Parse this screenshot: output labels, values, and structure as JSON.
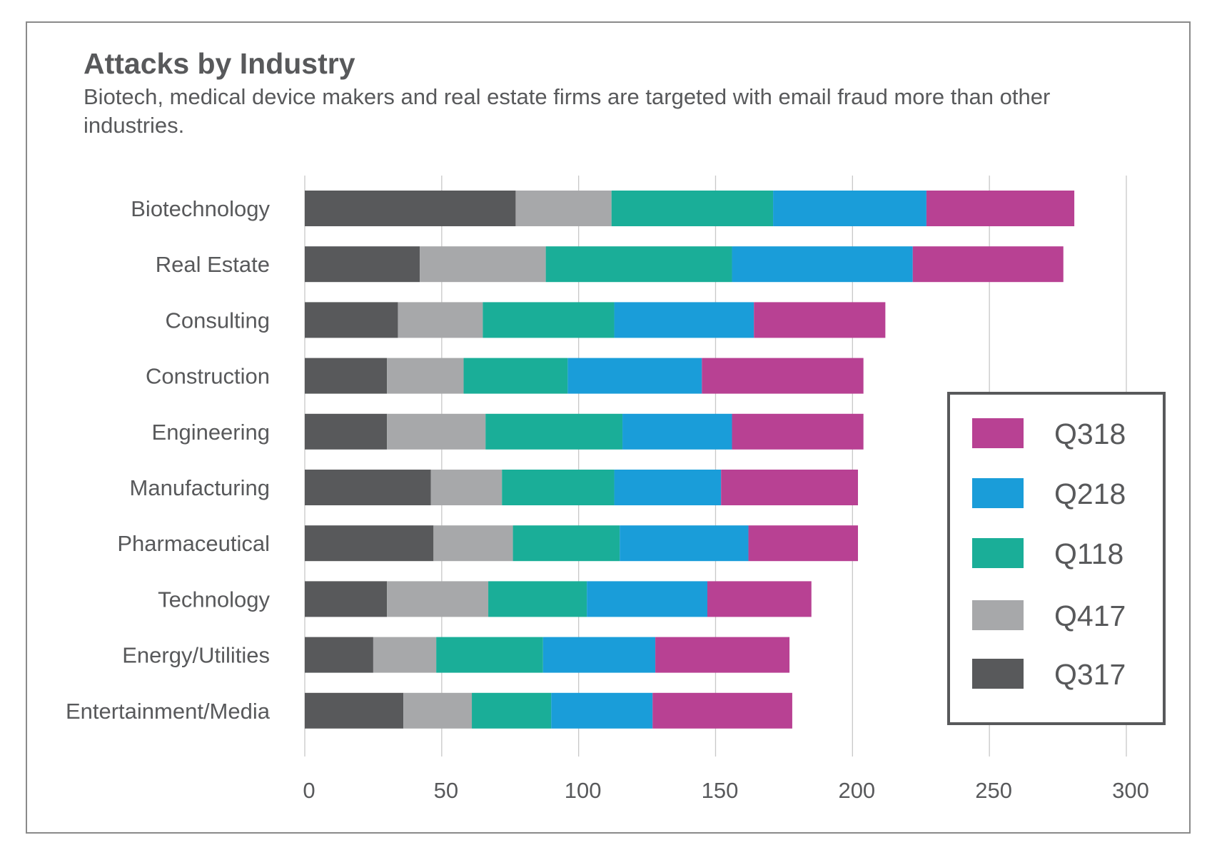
{
  "chart_data": {
    "type": "bar",
    "orientation": "horizontal",
    "stacked": true,
    "title": "Attacks by Industry",
    "subtitle": "Biotech, medical device makers and real estate firms are targeted with email fraud more than other industries.",
    "xlabel": "",
    "ylabel": "",
    "xlim": [
      0,
      300
    ],
    "xticks": [
      0,
      50,
      100,
      150,
      200,
      250,
      300
    ],
    "grid": "vertical",
    "legend_position": "right",
    "categories": [
      "Biotechnology",
      "Real Estate",
      "Consulting",
      "Construction",
      "Engineering",
      "Manufacturing",
      "Pharmaceutical",
      "Technology",
      "Energy/Utilities",
      "Entertainment/Media"
    ],
    "series": [
      {
        "name": "Q317",
        "color": "#58595b",
        "values": [
          77,
          42,
          34,
          30,
          30,
          46,
          47,
          30,
          25,
          36
        ]
      },
      {
        "name": "Q417",
        "color": "#a7a8aa",
        "values": [
          35,
          46,
          31,
          28,
          36,
          26,
          29,
          37,
          23,
          25
        ]
      },
      {
        "name": "Q118",
        "color": "#1aae98",
        "values": [
          59,
          68,
          48,
          38,
          50,
          41,
          39,
          36,
          39,
          29
        ]
      },
      {
        "name": "Q218",
        "color": "#1a9dd9",
        "values": [
          56,
          66,
          51,
          49,
          40,
          39,
          47,
          44,
          41,
          37
        ]
      },
      {
        "name": "Q318",
        "color": "#b84193",
        "values": [
          54,
          55,
          48,
          59,
          48,
          50,
          40,
          38,
          49,
          51
        ]
      }
    ],
    "legend_order": [
      "Q318",
      "Q218",
      "Q118",
      "Q417",
      "Q317"
    ]
  }
}
